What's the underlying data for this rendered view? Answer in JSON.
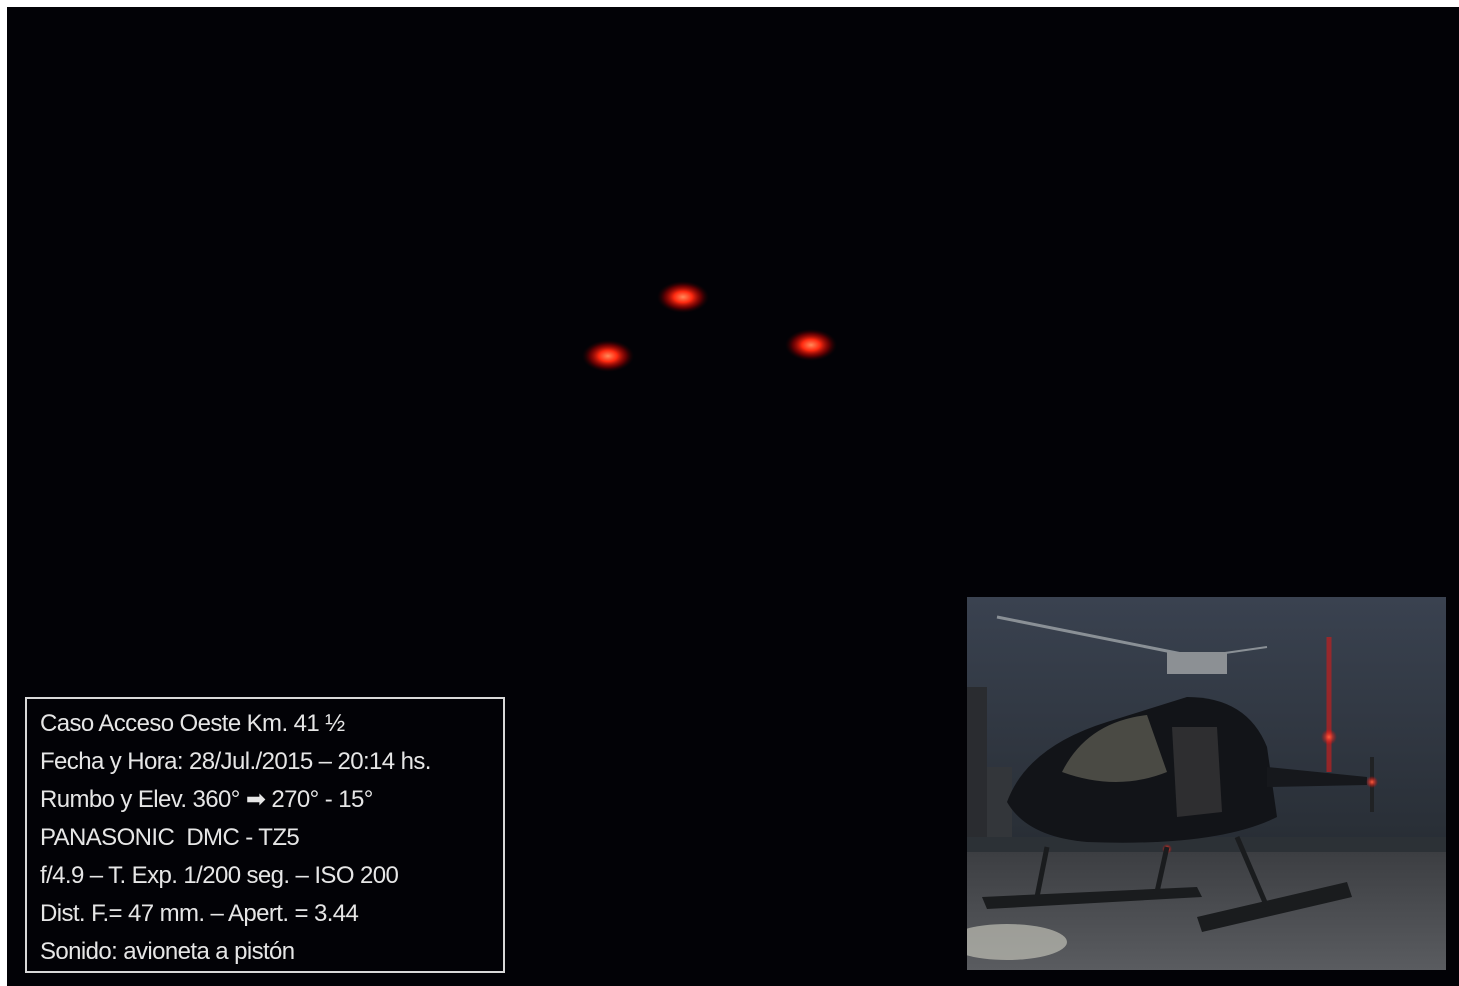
{
  "info_box": {
    "lines": [
      "Caso Acceso Oeste Km. 41 ½",
      "Fecha y Hora: 28/Jul./2015 – 20:14 hs.",
      "Rumbo y Elev. 360° ➡ 270° - 15°",
      "PANASONIC  DMC - TZ5",
      "f/4.9 – T. Exp. 1/200 seg. – ISO 200",
      "Dist. F.= 47 mm. – Apert. = 3.44",
      "Sonido: avioneta a pistón"
    ]
  }
}
